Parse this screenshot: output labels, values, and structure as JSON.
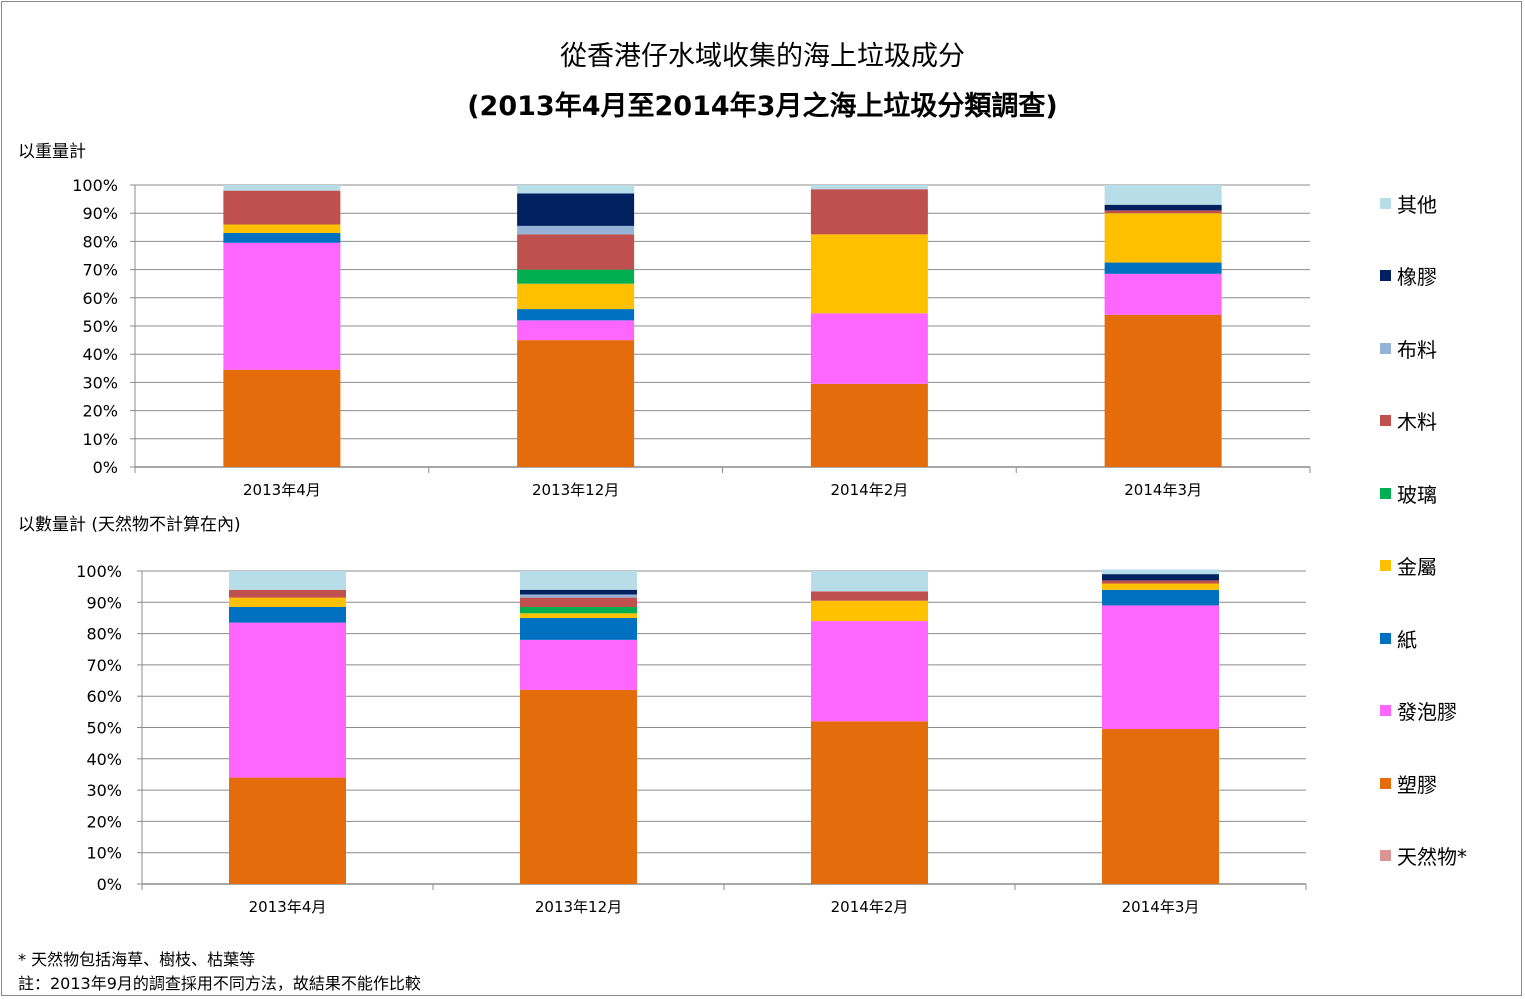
{
  "title": {
    "line1": "從香港仔水域收集的海上垃圾成分",
    "line2": "(2013年4月至2014年3月之海上垃圾分類調查)"
  },
  "colors": {
    "天然物*": "#d99594",
    "塑膠": "#e46c0a",
    "發泡膠": "#ff66ff",
    "紙": "#0070c0",
    "金屬": "#ffc000",
    "玻璃": "#00b050",
    "木料": "#c0504d",
    "布料": "#95b3d7",
    "橡膠": "#002060",
    "其他": "#b7dee8"
  },
  "legend": [
    "其他",
    "橡膠",
    "布料",
    "木料",
    "玻璃",
    "金屬",
    "紙",
    "發泡膠",
    "塑膠",
    "天然物*"
  ],
  "chart_data": [
    {
      "type": "bar",
      "stacked": true,
      "subtitle": "以重量計",
      "categories": [
        "2013年4月",
        "2013年12月",
        "2014年2月",
        "2014年3月"
      ],
      "ylim": [
        0,
        100
      ],
      "yticks": [
        "0%",
        "10%",
        "20%",
        "30%",
        "40%",
        "50%",
        "60%",
        "70%",
        "80%",
        "90%",
        "100%"
      ],
      "series": [
        {
          "name": "天然物*",
          "values": [
            0,
            0,
            0,
            0
          ]
        },
        {
          "name": "塑膠",
          "values": [
            34.5,
            45,
            29.5,
            54
          ]
        },
        {
          "name": "發泡膠",
          "values": [
            45,
            7,
            25,
            14.5
          ]
        },
        {
          "name": "紙",
          "values": [
            3.5,
            4,
            0,
            4
          ]
        },
        {
          "name": "金屬",
          "values": [
            3,
            9,
            28,
            17.5
          ]
        },
        {
          "name": "玻璃",
          "values": [
            0,
            5,
            0,
            0
          ]
        },
        {
          "name": "木料",
          "values": [
            12,
            12.5,
            16,
            1
          ]
        },
        {
          "name": "布料",
          "values": [
            0,
            3,
            0,
            0
          ]
        },
        {
          "name": "橡膠",
          "values": [
            0,
            11.5,
            0,
            2
          ]
        },
        {
          "name": "其他",
          "values": [
            2,
            3,
            1.5,
            7
          ]
        }
      ]
    },
    {
      "type": "bar",
      "stacked": true,
      "subtitle": "以數量計 (天然物不計算在內)",
      "categories": [
        "2013年4月",
        "2013年12月",
        "2014年2月",
        "2014年3月"
      ],
      "ylim": [
        0,
        100
      ],
      "yticks": [
        "0%",
        "10%",
        "20%",
        "30%",
        "40%",
        "50%",
        "60%",
        "70%",
        "80%",
        "90%",
        "100%"
      ],
      "series": [
        {
          "name": "天然物*",
          "values": [
            0,
            0,
            0,
            0
          ]
        },
        {
          "name": "塑膠",
          "values": [
            34,
            62,
            52,
            49.5
          ]
        },
        {
          "name": "發泡膠",
          "values": [
            49.5,
            16,
            32,
            39.5
          ]
        },
        {
          "name": "紙",
          "values": [
            5,
            7,
            0,
            5
          ]
        },
        {
          "name": "金屬",
          "values": [
            3,
            1.5,
            6.5,
            2
          ]
        },
        {
          "name": "玻璃",
          "values": [
            0,
            2,
            0,
            0
          ]
        },
        {
          "name": "木料",
          "values": [
            2.5,
            3,
            3,
            1
          ]
        },
        {
          "name": "布料",
          "values": [
            0,
            1,
            0,
            0
          ]
        },
        {
          "name": "橡膠",
          "values": [
            0,
            1.5,
            0,
            2
          ]
        },
        {
          "name": "其他",
          "values": [
            6,
            6,
            6.5,
            1.5
          ]
        }
      ]
    }
  ],
  "footnotes": {
    "line1": "* 天然物包括海草、樹枝、枯葉等",
    "line2": "註：2013年9月的調查採用不同方法，故結果不能作比較"
  }
}
